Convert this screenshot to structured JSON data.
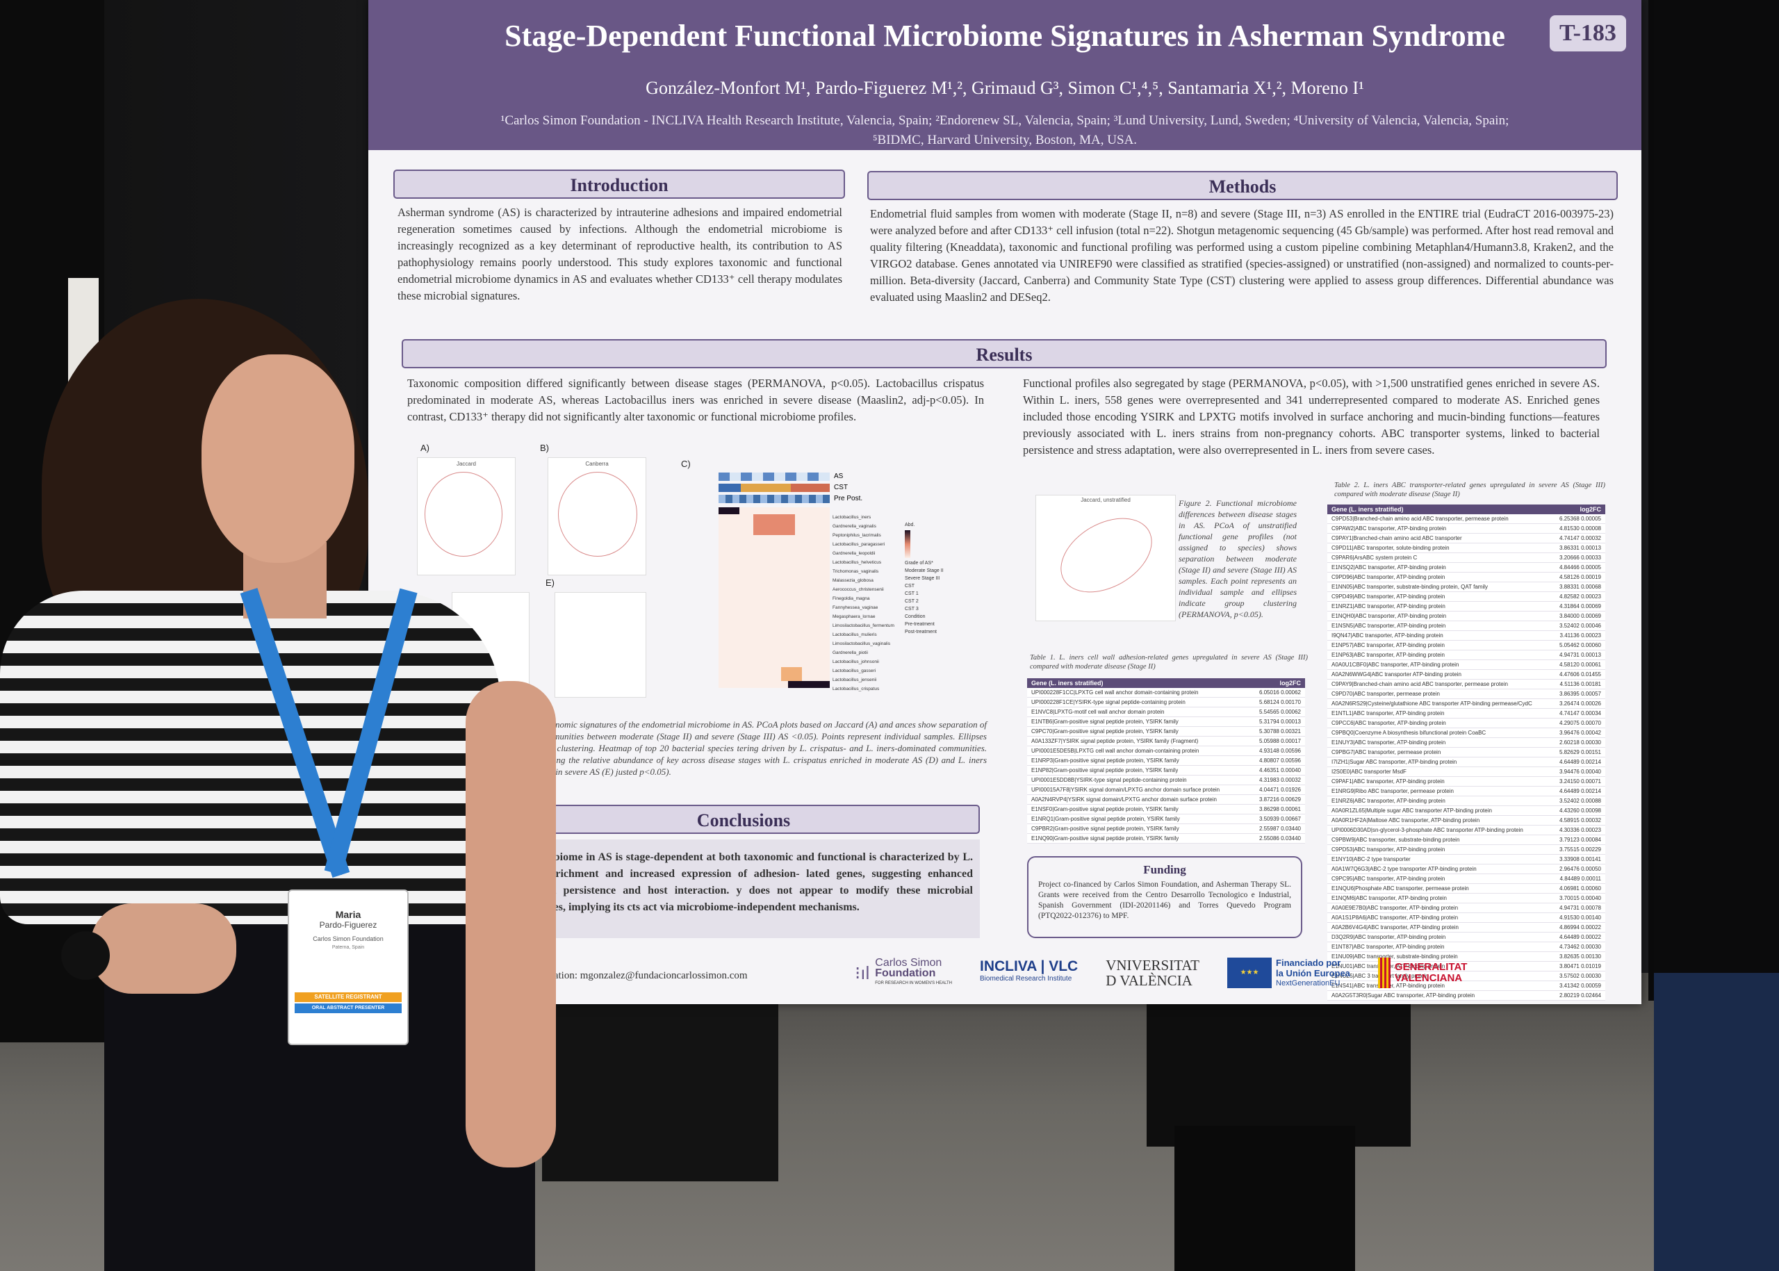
{
  "poster": {
    "title": "Stage-Dependent Functional Microbiome Signatures in Asherman Syndrome",
    "code": "T-183",
    "authors": "González-Monfort M¹, Pardo-Figuerez M¹,², Grimaud G³, Simon C¹,⁴,⁵, Santamaria X¹,², Moreno I¹",
    "affiliations_1": "¹Carlos Simon Foundation - INCLIVA Health Research Institute, Valencia, Spain; ²Endorenew SL, Valencia, Spain; ³Lund University, Lund, Sweden; ⁴University of Valencia, Valencia, Spain;",
    "affiliations_2": "⁵BIDMC, Harvard University, Boston, MA, USA.",
    "introduction": {
      "heading": "Introduction",
      "text": "Asherman syndrome (AS) is characterized by intrauterine adhesions and impaired endometrial regeneration sometimes caused by infections. Although the endometrial microbiome is increasingly recognized as a key determinant of reproductive health, its contribution to AS pathophysiology remains poorly understood. This study explores taxonomic and functional endometrial microbiome dynamics in AS and evaluates whether CD133⁺ cell therapy modulates these microbial signatures."
    },
    "methods": {
      "heading": "Methods",
      "text": "Endometrial fluid samples from women with moderate (Stage II, n=8) and severe (Stage III, n=3) AS enrolled in the ENTIRE trial (EudraCT 2016-003975-23) were analyzed before and after CD133⁺ cell infusion (total n=22). Shotgun metagenomic sequencing (45 Gb/sample) was performed. After host read removal and quality filtering (Kneaddata), taxonomic and functional profiling was performed using a custom pipeline combining Metaphlan4/Humann3.8, Kraken2, and the VIRGO2 database. Genes annotated via UNIREF90 were classified as stratified (species-assigned) or unstratified (non-assigned) and normalized to counts-per-million. Beta-diversity (Jaccard, Canberra) and Community State Type (CST) clustering were applied to assess group differences. Differential abundance was evaluated using Maaslin2 and DESeq2."
    },
    "results": {
      "heading": "Results",
      "left_text": "Taxonomic composition differed significantly between disease stages (PERMANOVA, p<0.05). Lactobacillus crispatus predominated in moderate AS, whereas Lactobacillus iners was enriched in severe disease (Maaslin2, adj-p<0.05). In contrast, CD133⁺ therapy did not significantly alter taxonomic or functional microbiome profiles.",
      "right_text": "Functional profiles also segregated by stage (PERMANOVA, p<0.05), with >1,500 unstratified genes enriched in severe AS. Within L. iners, 558 genes were overrepresented and 341 underrepresented compared to moderate AS. Enriched genes included those encoding YSIRK and LPXTG motifs involved in surface anchoring and mucin-binding functions—features previously associated with L. iners strains from non-pregnancy cohorts. ABC transporter systems, linked to bacterial persistence and stress adaptation, were also overrepresented in L. iners from severe cases.",
      "panel_labels": [
        "A)",
        "B)",
        "C)",
        "E)"
      ],
      "plot_titles": [
        "Jaccard",
        "Canberra",
        "Jaccard, unstratified"
      ],
      "heatmap_bars": [
        "AS",
        "CST",
        "Pre Post."
      ],
      "heatmap_legend": [
        "Abd.",
        "Grade of AS*",
        "Moderate Stage II",
        "Severe Stage III",
        "CST",
        "CST 1",
        "CST 2",
        "CST 3",
        "Condition",
        "Pre-treatment",
        "Post-treatment"
      ],
      "species": [
        "Lactobacillus_iners",
        "Gardnerella_vaginalis",
        "Peptoniphilus_lacrimalis",
        "Lactobacillus_paragasseri",
        "Gardnerella_leopoldii",
        "Lactobacillus_helveticus",
        "Trichomonas_vaginalis",
        "Malassezia_globosa",
        "Aerococcus_christensenii",
        "Finegoldia_magna",
        "Fannyhessea_vaginae",
        "Megasphaera_lornae",
        "Limosilactobacillus_fermentum",
        "Lactobacillus_mulieris",
        "Limosilactobacillus_vaginalis",
        "Gardnerella_piotii",
        "Lactobacillus_johnsonii",
        "Lactobacillus_gasseri",
        "Lactobacillus_jensenii",
        "Lactobacillus_crispatus"
      ],
      "figure1_caption": "dependent taxonomic signatures of the endometrial microbiome in AS. PCoA plots based on Jaccard (A) and ances show separation of microbial communities between moderate (Stage II) and severe (Stage III) AS <0.05). Points represent individual samples. Ellipses indicate group clustering. Heatmap of top 20 bacterial species tering driven by L. crispatus- and L. iners-dominated communities. Boxplots showing the relative abundance of key across disease stages with L. crispatus enriched in moderate AS (D) and L. iners predominating in severe AS (E) justed p<0.05).",
      "figure2_caption": "Figure 2. Functional microbiome differences between disease stages in AS. PCoA of unstratified functional gene profiles (not assigned to species) shows separation between moderate (Stage II) and severe (Stage III) AS samples. Each point represents an individual sample and ellipses indicate group clustering (PERMANOVA, p<0.05).",
      "table1_caption": "Table 1. L. iners cell wall adhesion-related genes upregulated in severe AS (Stage III) compared with moderate disease (Stage II)",
      "table2_caption": "Table 2. L. iners ABC transporter-related genes upregulated in severe AS (Stage III) compared with moderate disease (Stage II)",
      "table_header": [
        "Gene (L. iners stratified)",
        "log2FC",
        "padj"
      ],
      "table1_rows": [
        [
          "UPI000228F1CC|LPXTG cell wall anchor domain-containing protein",
          "6.05016",
          "0.00062"
        ],
        [
          "UPI000228F1CE|YSIRK-type signal peptide-containing protein",
          "5.68124",
          "0.00170"
        ],
        [
          "E1NVC8|LPXTG-motif cell wall anchor domain protein",
          "5.54565",
          "0.00062"
        ],
        [
          "E1NTB6|Gram-positive signal peptide protein, YSIRK family",
          "5.31794",
          "0.00013"
        ],
        [
          "C9PC70|Gram-positive signal peptide protein, YSIRK family",
          "5.30788",
          "0.00321"
        ],
        [
          "A0A133ZF7|YSIRK signal peptide protein, YSIRK family (Fragment)",
          "5.05988",
          "0.00017"
        ],
        [
          "UPI0001E5DE5B|LPXTG cell wall anchor domain-containing protein",
          "4.93148",
          "0.00596"
        ],
        [
          "E1NRP3|Gram-positive signal peptide protein, YSIRK family",
          "4.80807",
          "0.00596"
        ],
        [
          "E1NP82|Gram-positive signal peptide protein, YSIRK family",
          "4.46351",
          "0.00040"
        ],
        [
          "UPI0001E5DD8B|YSIRK-type signal peptide-containing protein",
          "4.31983",
          "0.00032"
        ],
        [
          "UPI00015A7F8|YSIRK signal domain/LPXTG anchor domain surface protein",
          "4.04471",
          "0.01926"
        ],
        [
          "A0A2N4RVP4|YSIRK signal domain/LPXTG anchor domain surface protein",
          "3.87216",
          "0.00629"
        ],
        [
          "E1NSF0|Gram-positive signal peptide protein, YSIRK family",
          "3.86298",
          "0.00061"
        ],
        [
          "E1NRQ1|Gram-positive signal peptide protein, YSIRK family",
          "3.50939",
          "0.00667"
        ],
        [
          "C9PBR2|Gram-positive signal peptide protein, YSIRK family",
          "2.55987",
          "0.03440"
        ],
        [
          "E1NQ90|Gram-positive signal peptide protein, YSIRK family",
          "2.55086",
          "0.03440"
        ]
      ],
      "table2_rows": [
        [
          "C9PD53|Branched-chain amino acid ABC transporter, permease protein",
          "6.25368",
          "0.00005"
        ],
        [
          "C9PAW2|ABC transporter, ATP-binding protein",
          "4.81530",
          "0.00008"
        ],
        [
          "C9PAY1|Branched-chain amino acid ABC transporter",
          "4.74147",
          "0.00032"
        ],
        [
          "C9PD11|ABC transporter, solute-binding protein",
          "3.86331",
          "0.00013"
        ],
        [
          "C9PAR6|ArsABC system protein C",
          "3.20666",
          "0.00033"
        ],
        [
          "E1NSQ2|ABC transporter, ATP-binding protein",
          "4.84466",
          "0.00005"
        ],
        [
          "C9PD96|ABC transporter, ATP-binding protein",
          "4.58126",
          "0.00019"
        ],
        [
          "E1NN05|ABC transporter, substrate-binding protein, QAT family",
          "3.88331",
          "0.00068"
        ],
        [
          "C9PD49|ABC transporter, ATP-binding protein",
          "4.82582",
          "0.00023"
        ],
        [
          "E1NRZ1|ABC transporter, ATP-binding protein",
          "4.31864",
          "0.00069"
        ],
        [
          "E1NQH0|ABC transporter, ATP-binding protein",
          "3.84000",
          "0.00069"
        ],
        [
          "E1NSN5|ABC transporter, ATP-binding protein",
          "3.52402",
          "0.00046"
        ],
        [
          "I9QN47|ABC transporter, ATP-binding protein",
          "3.41136",
          "0.00023"
        ],
        [
          "E1NP57|ABC transporter, ATP-binding protein",
          "5.05462",
          "0.00060"
        ],
        [
          "E1NP63|ABC transporter, ATP-binding protein",
          "4.94731",
          "0.00013"
        ],
        [
          "A0A0U1CBF0|ABC transporter, ATP-binding protein",
          "4.58120",
          "0.00061"
        ],
        [
          "A0A2N6WWG4|ABC transporter ATP-binding protein",
          "4.47606",
          "0.01455"
        ],
        [
          "C9PAY9|Branched-chain amino acid ABC transporter, permease protein",
          "4.51136",
          "0.00181"
        ],
        [
          "C9PD70|ABC transporter, permease protein",
          "3.86395",
          "0.00057"
        ],
        [
          "A0A2N6RS29|Cysteine/glutathione ABC transporter ATP-binding permease/CydC",
          "3.26474",
          "0.00026"
        ],
        [
          "E1NTL1|ABC transporter, ATP-binding protein",
          "4.74147",
          "0.00034"
        ],
        [
          "C9PCC6|ABC transporter, ATP-binding protein",
          "4.29075",
          "0.00070"
        ],
        [
          "C9PBQ0|Coenzyme A biosynthesis bifunctional protein CoaBC",
          "3.96476",
          "0.00042"
        ],
        [
          "E1NUY3|ABC transporter, ATP-binding protein",
          "2.60218",
          "0.00030"
        ],
        [
          "C9PBG7|ABC transporter, permease protein",
          "5.82629",
          "0.00151"
        ],
        [
          "I7IZH1|Sugar ABC transporter, ATP-binding protein",
          "4.64489",
          "0.00214"
        ],
        [
          "I2S0E0|ABC transporter MsdF",
          "3.94476",
          "0.00040"
        ],
        [
          "C9PAF1|ABC transporter, ATP-binding protein",
          "3.24150",
          "0.00071"
        ],
        [
          "E1NRG9|Ribo ABC transporter, permease protein",
          "4.64489",
          "0.00214"
        ],
        [
          "E1NRZ6|ABC transporter, ATP-binding protein",
          "3.52402",
          "0.00088"
        ],
        [
          "A0A0R1ZL65|Multiple sugar ABC transporter ATP-binding protein",
          "4.43260",
          "0.00098"
        ],
        [
          "A0A0R1HF2A|Maltose ABC transporter, ATP-binding protein",
          "4.58915",
          "0.00032"
        ],
        [
          "UPI0006D30AD|sn-glycerol-3-phosphate ABC transporter ATP-binding protein",
          "4.30336",
          "0.00023"
        ],
        [
          "C9PBW9|ABC transporter, substrate-binding protein",
          "3.79123",
          "0.00084"
        ],
        [
          "C9PD53|ABC transporter, ATP-binding protein",
          "3.75515",
          "0.00229"
        ],
        [
          "E1NY10|ABC-2 type transporter",
          "3.33908",
          "0.00141"
        ],
        [
          "A0A1W7Q6G3|ABC-2 type transporter ATP-binding protein",
          "2.96476",
          "0.00050"
        ],
        [
          "C9PC95|ABC transporter, ATP-binding protein",
          "4.84489",
          "0.00011"
        ],
        [
          "E1NQU6|Phosphate ABC transporter, permease protein",
          "4.06981",
          "0.00060"
        ],
        [
          "E1NQM6|ABC transporter, ATP-binding protein",
          "3.70015",
          "0.00040"
        ],
        [
          "A0A0E9E7B0|ABC transporter, ATP-binding protein",
          "4.94731",
          "0.00078"
        ],
        [
          "A0A1S1P8A6|ABC transporter, ATP-binding protein",
          "4.91530",
          "0.00140"
        ],
        [
          "A0A2B6V4G4|ABC transporter, ATP-binding protein",
          "4.86994",
          "0.00022"
        ],
        [
          "D3Q2R9|ABC transporter, ATP-binding protein",
          "4.64489",
          "0.00022"
        ],
        [
          "E1NT87|ABC transporter, ATP-binding protein",
          "4.73462",
          "0.00030"
        ],
        [
          "E1NU09|ABC transporter, substrate-binding protein",
          "3.82635",
          "0.00130"
        ],
        [
          "E1NU01|ABC transporter, ATP-binding protein",
          "3.80471",
          "0.01019"
        ],
        [
          "E1NUZ5|ABC 3 transport family protein",
          "3.57502",
          "0.00030"
        ],
        [
          "E1NS41|ABC transporter, ATP-binding protein",
          "3.41342",
          "0.00059"
        ],
        [
          "A0A2G5T3R0|Sugar ABC transporter, ATP-binding protein",
          "2.80219",
          "0.02464"
        ]
      ]
    },
    "conclusions": {
      "heading": "Conclusions",
      "text": "al microbiome in AS is stage-dependent at both taxonomic and functional is characterized by L. iners enrichment and increased expression of adhesion- lated genes, suggesting enhanced bacterial persistence and host interaction. y does not appear to modify these microbial signatures, implying its cts act via microbiome-independent mechanisms."
    },
    "contact": "information: mgonzalez@fundacioncarlossimon.com",
    "funding": {
      "heading": "Funding",
      "text": "Project co-financed by Carlos Simon Foundation, and Asherman Therapy SL. Grants were received from the Centro Desarrollo Tecnologico e Industrial, Spanish Government (IDI-20201146) and Torres Quevedo Program (PTQ2022-012376) to MPF."
    },
    "logos": {
      "csf_1": "Carlos Simon",
      "csf_2": "Foundation",
      "csf_3": "FOR RESEARCH IN WOMEN'S HEALTH",
      "incliva_1": "INCLIVA | VLC",
      "incliva_2": "Biomedical Research Institute",
      "uv_1": "VNIVERSITAT",
      "uv_2": "D VALÈNCIA",
      "eu_1": "Financiado por",
      "eu_2": "la Unión Europea",
      "eu_3": "NextGenerationEU",
      "gva_1": "GENERALITAT",
      "gva_2": "VALENCIANA"
    }
  },
  "badge": {
    "first_name": "Maria",
    "last_name": "Pardo-Figuerez",
    "org": "Carlos Simon Foundation",
    "city": "Paterna, Spain",
    "ribbon_1": "SATELLITE REGISTRANT",
    "ribbon_2": "ORAL ABSTRACT PRESENTER"
  },
  "colors": {
    "poster_header": "#695786",
    "lanyard": "#2d7fd1"
  }
}
